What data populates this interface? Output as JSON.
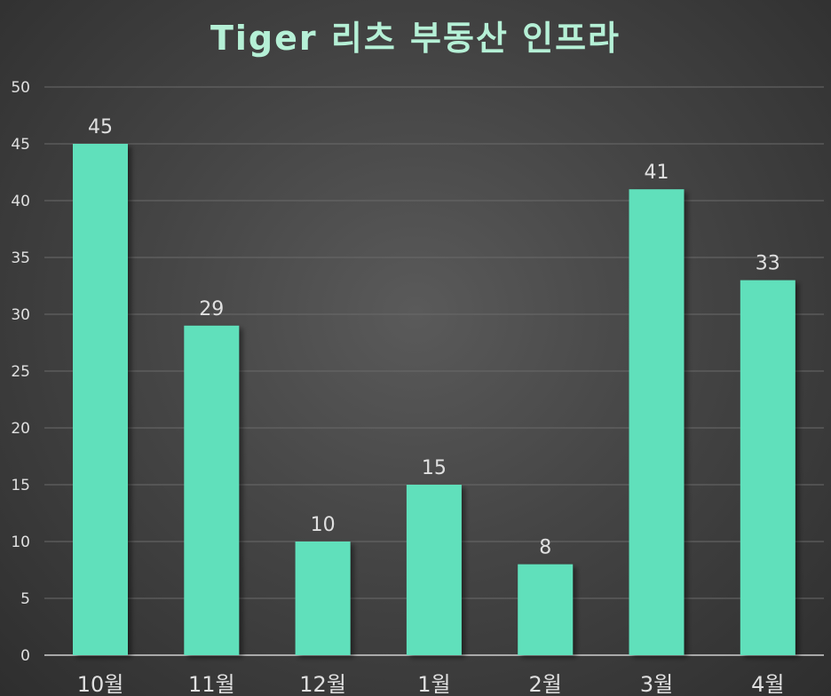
{
  "chart_data": {
    "type": "bar",
    "title": "Tiger 리츠 부동산 인프라",
    "categories": [
      "10월",
      "11월",
      "12월",
      "1월",
      "2월",
      "3월",
      "4월"
    ],
    "values": [
      45,
      29,
      10,
      15,
      8,
      41,
      33
    ],
    "data_labels": [
      "45",
      "29",
      "10",
      "15",
      "8",
      "41",
      "33"
    ],
    "yticks": [
      "0",
      "5",
      "10",
      "15",
      "20",
      "25",
      "30",
      "35",
      "40",
      "45",
      "50"
    ],
    "ylim": [
      0,
      50
    ],
    "xlabel": "",
    "ylabel": "",
    "grid": true,
    "legend": "none",
    "colors": {
      "bar": "#61e0bb",
      "title": "#b5f0d6",
      "text": "#e0e0e0",
      "grid": "#6a6a6a"
    }
  }
}
